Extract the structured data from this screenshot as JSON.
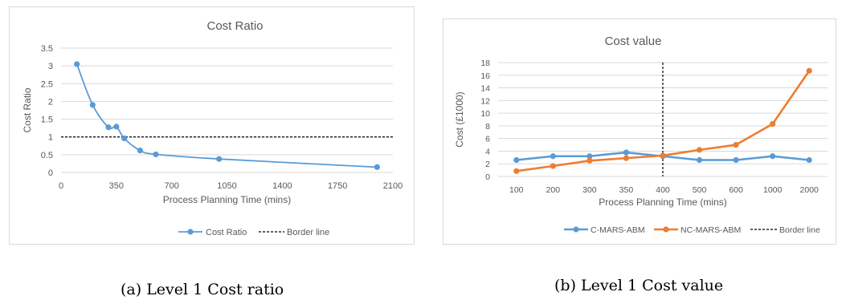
{
  "captions": {
    "a": "(a) Level 1 Cost ratio",
    "b": "(b) Level 1 Cost value"
  },
  "chart_data": [
    {
      "type": "scatter",
      "title": "Cost Ratio",
      "xlabel": "Process Planning Time (mins)",
      "ylabel": "Cost Ratio",
      "xlim": [
        0,
        2100
      ],
      "ylim": [
        0,
        3.5
      ],
      "x_ticks": [
        "0",
        "350",
        "700",
        "1050",
        "1400",
        "1750",
        "2100"
      ],
      "y_ticks": [
        "0",
        "0.5",
        "1",
        "1.5",
        "2",
        "2.5",
        "3",
        "3.5"
      ],
      "grid": "horizontal",
      "legend": "bottom",
      "series": [
        {
          "name": "Cost Ratio",
          "color": "#5b9bd5",
          "style": "smooth line with markers",
          "x": [
            100,
            200,
            300,
            350,
            400,
            500,
            600,
            1000,
            2000
          ],
          "y": [
            3.05,
            1.9,
            1.27,
            1.29,
            0.96,
            0.62,
            0.51,
            0.38,
            0.15
          ]
        },
        {
          "name": "Border line",
          "color": "#000000",
          "style": "dashed",
          "x": [
            0,
            2100
          ],
          "y": [
            1,
            1
          ]
        }
      ]
    },
    {
      "type": "line",
      "title": "Cost value",
      "xlabel": "Process Planning Time (mins)",
      "ylabel": "Cost (£1000)",
      "categories": [
        "100",
        "200",
        "300",
        "350",
        "400",
        "500",
        "600",
        "1000",
        "2000"
      ],
      "ylim": [
        0,
        18
      ],
      "y_ticks": [
        "0",
        "2",
        "4",
        "6",
        "8",
        "10",
        "12",
        "14",
        "16",
        "18"
      ],
      "grid": "horizontal",
      "legend": "bottom",
      "series": [
        {
          "name": "C-MARS-ABM",
          "color": "#5b9bd5",
          "values": [
            2.6,
            3.2,
            3.2,
            3.8,
            3.2,
            2.6,
            2.6,
            3.2,
            2.6
          ]
        },
        {
          "name": "NC-MARS-ABM",
          "color": "#ed7d31",
          "values": [
            0.85,
            1.65,
            2.5,
            2.9,
            3.3,
            4.2,
            5.0,
            8.3,
            16.7
          ]
        }
      ],
      "vertical_marker": {
        "name": "Border line",
        "category": "400",
        "style": "dashed",
        "color": "#000000"
      }
    }
  ]
}
